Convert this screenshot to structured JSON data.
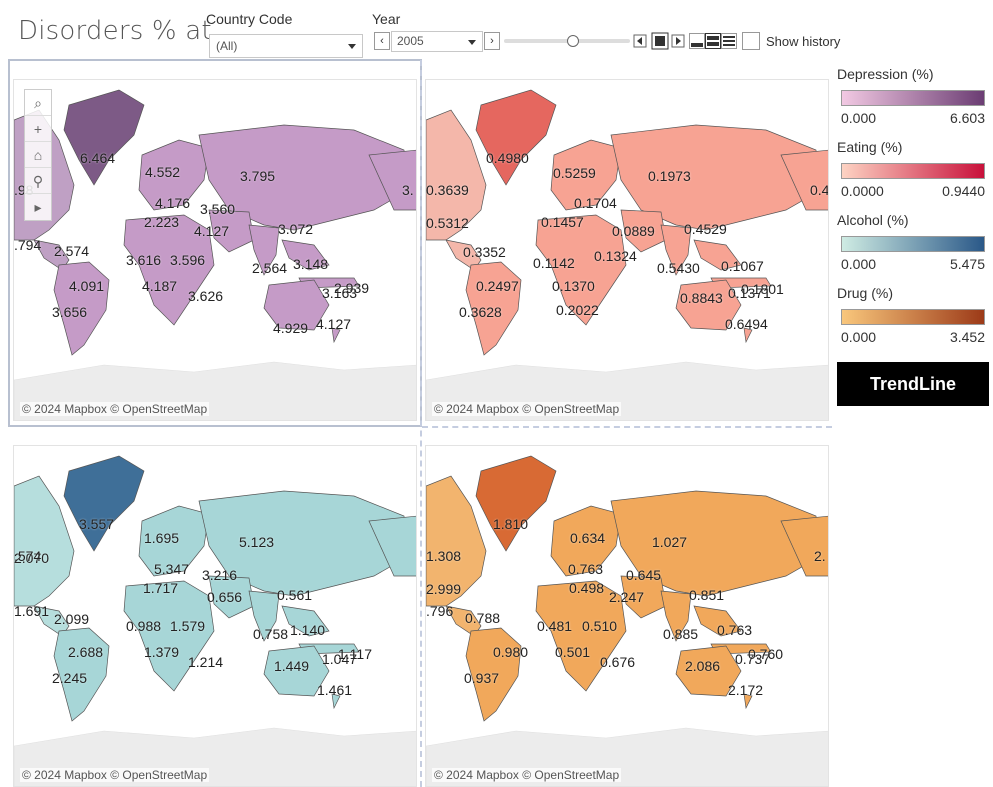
{
  "header": {
    "title": "Disorders % at",
    "country_label": "Country Code",
    "country_value": "(All)",
    "year_label": "Year",
    "year_value": "2005",
    "show_history": "Show history"
  },
  "attribution": "© 2024 Mapbox © OpenStreetMap",
  "trend_button": "TrendLine",
  "legends": [
    {
      "title": "Depression (%)",
      "min": "0.000",
      "max": "6.603",
      "color_low": "#f2c9e3",
      "color_high": "#6b3d73"
    },
    {
      "title": "Eating (%)",
      "min": "0.0000",
      "max": "0.9440",
      "color_low": "#fdd3c3",
      "color_high": "#c8103a"
    },
    {
      "title": "Alcohol (%)",
      "min": "0.000",
      "max": "5.475",
      "color_low": "#cfece3",
      "color_high": "#2a5888"
    },
    {
      "title": "Drug (%)",
      "min": "0.000",
      "max": "3.452",
      "color_low": "#f9c77c",
      "color_high": "#9c3a18"
    }
  ],
  "maps": {
    "depression": {
      "fill": "#c59bc7",
      "dark": "#7d5a86",
      "land_dim": "#bfa0c4",
      "labels": [
        "6.464",
        "4.552",
        "4.176",
        "3.795",
        "3.560",
        "2.223",
        "4.127",
        "3.072",
        ".794",
        "2.574",
        "3.616",
        "3.596",
        "2.564",
        "3.148",
        "4.091",
        "4.187",
        "3.626",
        "4.929",
        "3.163",
        "2.939",
        "3.656",
        "4.127",
        ".98",
        "3."
      ]
    },
    "eating": {
      "fill": "#f7a393",
      "dark": "#e5675f",
      "land_dim": "#f4b7aa",
      "labels": [
        "0.4980",
        "0.5259",
        "0.1973",
        "0.1704",
        "0.1457",
        "0.0889",
        "0.4529",
        "0.3639",
        "0.5312",
        "0.3352",
        "0.1142",
        "0.1324",
        "0.5430",
        "0.1067",
        "0.2497",
        "0.1370",
        "0.1801",
        "0.1371",
        "0.8843",
        "0.3628",
        "0.2022",
        "0.6494",
        "0.4"
      ]
    },
    "alcohol": {
      "fill": "#a7d6d7",
      "dark": "#3f6f98",
      "land_dim": "#b6dedd",
      "labels": [
        "3.557",
        "1.695",
        "5.123",
        "5.347",
        "3.216",
        "1.717",
        "0.656",
        "0.561",
        "2.070",
        "1.691",
        "2.099",
        "0.988",
        "1.579",
        "0.758",
        "1.140",
        "2.688",
        "1.379",
        "1.214",
        "1.449",
        "1.047",
        "1.117",
        "2.245",
        "1.461",
        ".574"
      ]
    },
    "drug": {
      "fill": "#f1a85b",
      "dark": "#d86a34",
      "land_dim": "#f2b46e",
      "labels": [
        "1.810",
        "0.634",
        "1.027",
        "0.763",
        "0.645",
        "0.498",
        "2.247",
        "0.851",
        "1.308",
        "2.999",
        ".796",
        "0.788",
        "0.481",
        "0.510",
        "0.885",
        "0.763",
        "0.980",
        "0.501",
        "0.676",
        "0.737",
        "0.760",
        "2.086",
        "0.937",
        "2.172",
        "2."
      ]
    }
  }
}
